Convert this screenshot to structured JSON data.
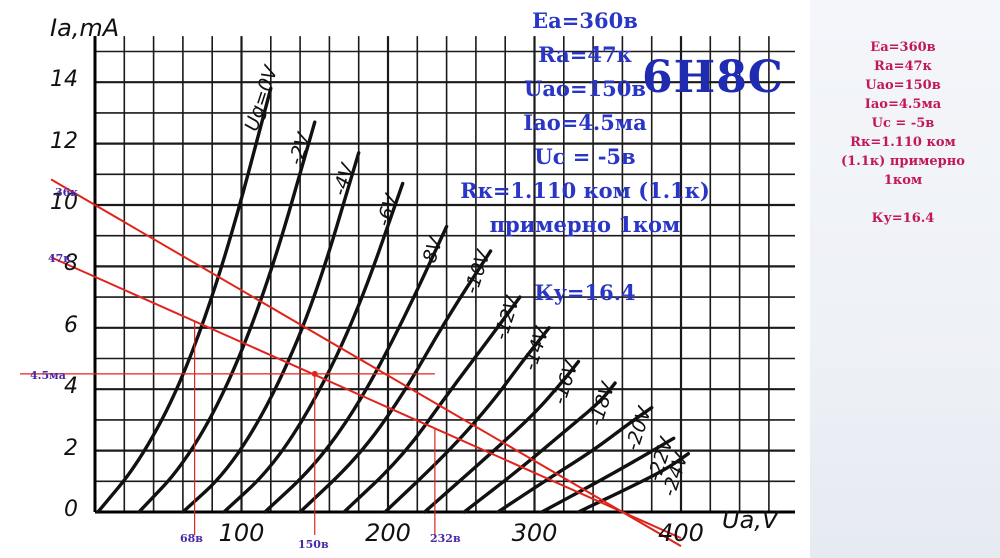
{
  "chart_data": {
    "type": "line",
    "title": "6Н8С",
    "ylabel": "Iа,mA",
    "xlabel": "Uа,V",
    "xlim": [
      0,
      400
    ],
    "ylim": [
      0,
      15
    ],
    "x_ticks": [
      "0",
      "100",
      "200",
      "300",
      "400"
    ],
    "y_ticks": [
      "0",
      "2",
      "4",
      "6",
      "8",
      "10",
      "12",
      "14"
    ],
    "grid": true,
    "series": [
      {
        "name": "Ug=0V",
        "points": [
          [
            2,
            0
          ],
          [
            30,
            1.6
          ],
          [
            60,
            4.3
          ],
          [
            90,
            8.4
          ],
          [
            120,
            13.8
          ]
        ]
      },
      {
        "name": "-2V",
        "points": [
          [
            30,
            0
          ],
          [
            60,
            1.5
          ],
          [
            90,
            4.0
          ],
          [
            120,
            7.7
          ],
          [
            150,
            12.7
          ]
        ]
      },
      {
        "name": "-4V",
        "points": [
          [
            60,
            0
          ],
          [
            90,
            1.3
          ],
          [
            120,
            3.6
          ],
          [
            150,
            6.9
          ],
          [
            180,
            11.7
          ]
        ]
      },
      {
        "name": "-6V",
        "points": [
          [
            88,
            0
          ],
          [
            120,
            1.4
          ],
          [
            150,
            3.6
          ],
          [
            180,
            6.6
          ],
          [
            210,
            10.7
          ]
        ]
      },
      {
        "name": "-8V",
        "points": [
          [
            116,
            0
          ],
          [
            150,
            1.5
          ],
          [
            180,
            3.5
          ],
          [
            210,
            6.2
          ],
          [
            240,
            9.3
          ]
        ]
      },
      {
        "name": "-10V",
        "points": [
          [
            140,
            0
          ],
          [
            180,
            1.8
          ],
          [
            210,
            3.8
          ],
          [
            240,
            6.3
          ],
          [
            270,
            8.5
          ]
        ]
      },
      {
        "name": "-12V",
        "points": [
          [
            170,
            0
          ],
          [
            210,
            1.8
          ],
          [
            240,
            3.8
          ],
          [
            270,
            5.7
          ],
          [
            290,
            7.0
          ]
        ]
      },
      {
        "name": "-14V",
        "points": [
          [
            198,
            0
          ],
          [
            240,
            1.9
          ],
          [
            270,
            3.5
          ],
          [
            290,
            4.8
          ],
          [
            310,
            6.0
          ]
        ]
      },
      {
        "name": "-16V",
        "points": [
          [
            225,
            0
          ],
          [
            270,
            1.9
          ],
          [
            300,
            3.2
          ],
          [
            320,
            4.3
          ],
          [
            330,
            4.9
          ]
        ]
      },
      {
        "name": "-18V",
        "points": [
          [
            252,
            0
          ],
          [
            290,
            1.4
          ],
          [
            320,
            2.6
          ],
          [
            345,
            3.6
          ],
          [
            355,
            4.2
          ]
        ]
      },
      {
        "name": "-20V",
        "points": [
          [
            275,
            0
          ],
          [
            310,
            1.1
          ],
          [
            340,
            2.0
          ],
          [
            365,
            2.9
          ],
          [
            380,
            3.4
          ]
        ]
      },
      {
        "name": "-22V",
        "points": [
          [
            305,
            0
          ],
          [
            340,
            0.9
          ],
          [
            370,
            1.7
          ],
          [
            395,
            2.4
          ]
        ]
      },
      {
        "name": "-24V",
        "points": [
          [
            330,
            0
          ],
          [
            365,
            0.8
          ],
          [
            390,
            1.4
          ],
          [
            405,
            1.9
          ]
        ]
      }
    ],
    "load_lines": [
      {
        "label": "36к",
        "points": [
          [
            0,
            10.0
          ],
          [
            360,
            0
          ]
        ]
      },
      {
        "label": "47к",
        "points": [
          [
            0,
            7.66
          ],
          [
            360,
            0
          ]
        ]
      }
    ],
    "markers": {
      "x": [
        {
          "label": "68в",
          "value": 68
        },
        {
          "label": "150в",
          "value": 150
        },
        {
          "label": "232в",
          "value": 232
        }
      ],
      "y": [
        {
          "label": "4.5ма",
          "value": 4.5
        }
      ]
    }
  },
  "annotations_blue": [
    "Ea=360в",
    "Ra=47к",
    "Uao=150в",
    "Iao=4.5ма",
    "Uc =  -5в",
    "Rк=1.110 ком (1.1к)",
    "примерно 1ком",
    "",
    "Ку=16.4"
  ],
  "model": "6Н8С",
  "annotations_pink": [
    "Ea=360в",
    "Ra=47к",
    "Uao=150в",
    "Iao=4.5ма",
    "Uc =  -5в",
    "Rк=1.110 ком",
    "(1.1к) примерно",
    "1ком",
    "",
    "Ку=16.4"
  ],
  "colors": {
    "load_line": "#e0241c",
    "curve": "#111111",
    "grid": "#1a1a1a",
    "blue_text": "#2a36c6",
    "pink_text": "#c2185b"
  }
}
